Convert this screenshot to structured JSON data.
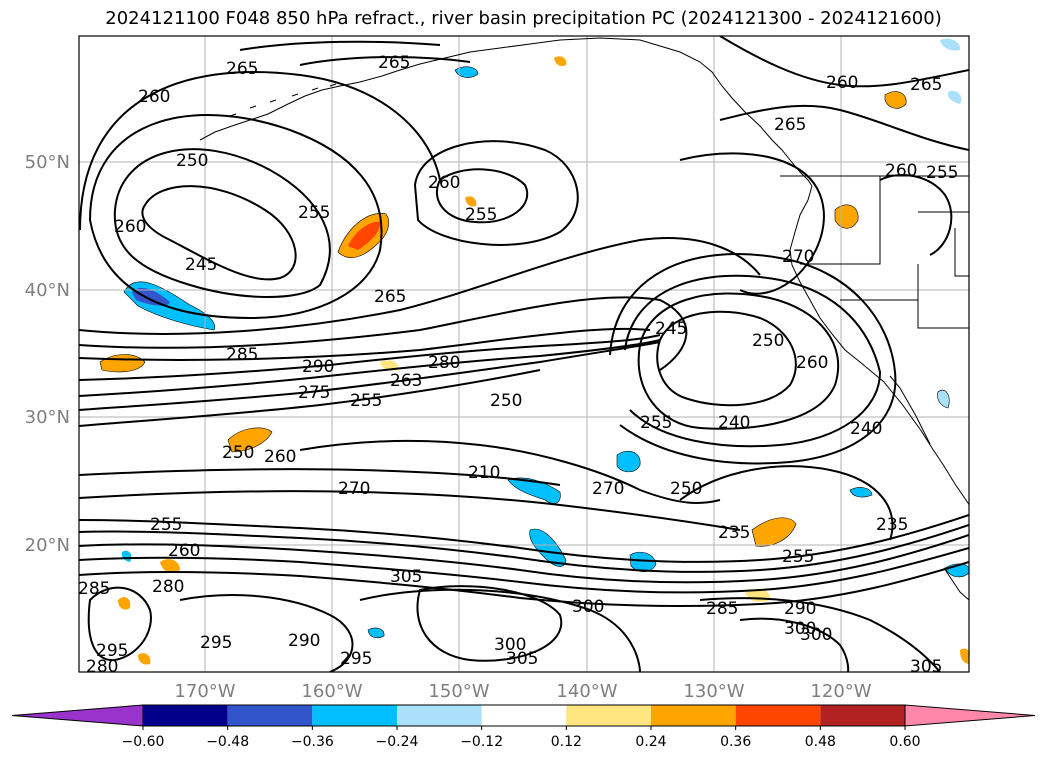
{
  "title": "2024121100 F048 850 hPa refract., river basin precipitation PC (2024121300 - 2024121600)",
  "lat_labels": [
    "50°N",
    "40°N",
    "30°N",
    "20°N"
  ],
  "lon_labels": [
    "170°W",
    "160°W",
    "150°W",
    "140°W",
    "130°W",
    "120°W"
  ],
  "contour_labels": [
    "265",
    "265",
    "260",
    "250",
    "260",
    "260",
    "255",
    "255",
    "260",
    "245",
    "265",
    "265",
    "260",
    "265",
    "255",
    "270",
    "285",
    "290",
    "280",
    "275",
    "263",
    "255",
    "250",
    "245",
    "250",
    "260",
    "240",
    "255",
    "240",
    "250",
    "260",
    "210",
    "270",
    "250",
    "270",
    "255",
    "260",
    "280",
    "235",
    "235",
    "255",
    "305",
    "300",
    "285",
    "290",
    "300",
    "295",
    "295",
    "305",
    "300",
    "305",
    "290",
    "295",
    "280",
    "285",
    "300"
  ],
  "colorbar": {
    "ticks": [
      "−0.60",
      "−0.48",
      "−0.36",
      "−0.24",
      "−0.12",
      "0.12",
      "0.24",
      "0.36",
      "0.48",
      "0.60"
    ],
    "colors": [
      "#9933cc",
      "#00008b",
      "#3355cc",
      "#00bfff",
      "#aae0fa",
      "#ffffff",
      "#ffe680",
      "#ffa500",
      "#ff4500",
      "#b22222",
      "#ff88aa"
    ]
  }
}
